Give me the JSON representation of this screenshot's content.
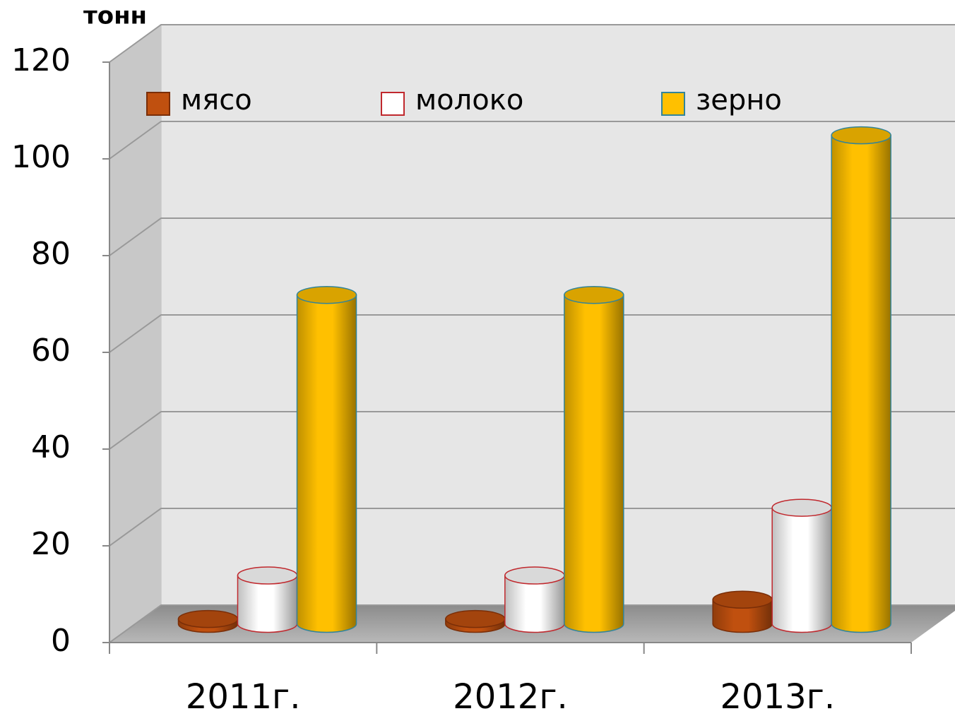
{
  "chart_data": {
    "type": "bar3d",
    "y_label": "тонн",
    "categories": [
      "2011г.",
      "2012г.",
      "2013г."
    ],
    "series": [
      {
        "name": "мясо",
        "color": "#c0500f",
        "edge_color": "#7a2e08",
        "values": [
          1,
          1,
          5
        ]
      },
      {
        "name": "молоко",
        "color": "#ffffff",
        "edge_color": "#c0282d",
        "values": [
          10,
          10,
          24
        ]
      },
      {
        "name": "зерно",
        "color": "#ffc000",
        "edge_color": "#31849b",
        "values": [
          68,
          68,
          101
        ]
      }
    ],
    "ylim": [
      0,
      120
    ],
    "yticks": [
      0,
      20,
      40,
      60,
      80,
      100,
      120
    ],
    "grid": true,
    "legend": "top"
  }
}
